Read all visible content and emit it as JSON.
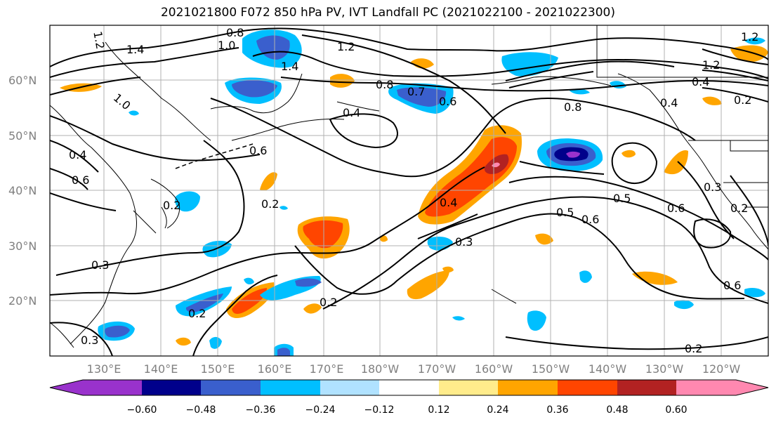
{
  "title": "2021021800 F072 850 hPa PV, IVT Landfall PC (2021022100 - 2021022300)",
  "map": {
    "lat_labels": [
      "60°N",
      "50°N",
      "40°N",
      "30°N",
      "20°N"
    ],
    "lon_labels": [
      "130°E",
      "140°E",
      "150°E",
      "160°E",
      "170°E",
      "180°W",
      "170°W",
      "160°W",
      "150°W",
      "140°W",
      "130°W",
      "120°W"
    ],
    "contour_labels": [
      "1.2",
      "1.4",
      "0.8",
      "1.0",
      "1.2",
      "1.4",
      "1.0",
      "0.8",
      "0.7",
      "0.6",
      "0.4",
      "0.8",
      "0.4",
      "0.6",
      "0.4",
      "0.6",
      "0.2",
      "0.2",
      "0.4",
      "0.3",
      "0.5",
      "0.6",
      "0.5",
      "0.6",
      "0.3",
      "0.2",
      "0.3",
      "0.2",
      "0.2",
      "0.3",
      "0.6",
      "0.2",
      "1.2",
      "0.2",
      "0.4",
      "1.2"
    ]
  },
  "colorbar": {
    "ticks": [
      "−0.60",
      "−0.48",
      "−0.36",
      "−0.24",
      "−0.12",
      "0.12",
      "0.24",
      "0.36",
      "0.48",
      "0.60"
    ],
    "colors": [
      "#9932CC",
      "#00008B",
      "#3A5FCD",
      "#00BFFF",
      "#B0E2FF",
      "#FFFFFF",
      "#FFEC8B",
      "#FFA500",
      "#FF4500",
      "#B22222",
      "#FF88B0"
    ]
  }
}
